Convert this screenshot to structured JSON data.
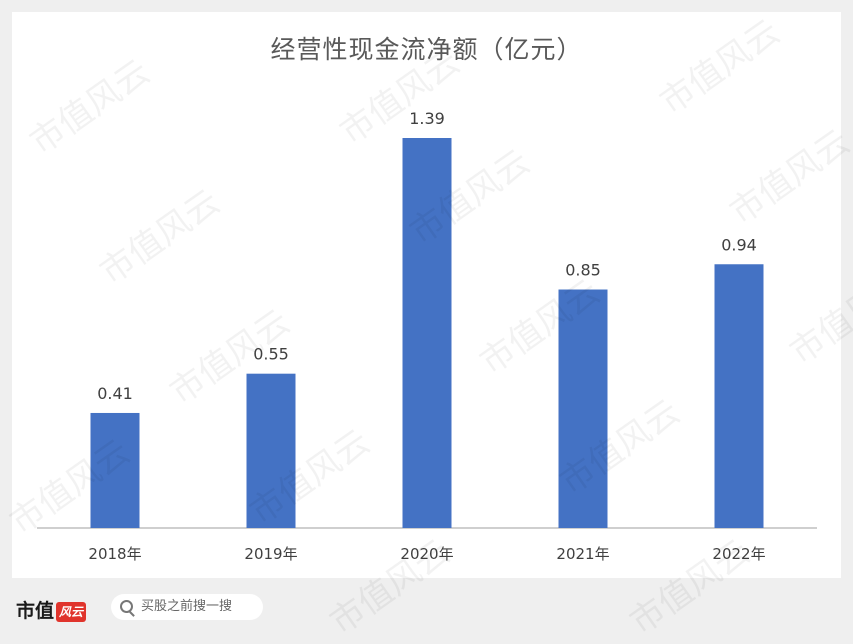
{
  "chart_data": {
    "type": "bar",
    "title": "经营性现金流净额（亿元）",
    "categories": [
      "2018年",
      "2019年",
      "2020年",
      "2021年",
      "2022年"
    ],
    "values": [
      0.41,
      0.55,
      1.39,
      0.85,
      0.94
    ],
    "data_labels": [
      "0.41",
      "0.55",
      "1.39",
      "0.85",
      "0.94"
    ],
    "bar_color": "#4472c4",
    "ylim": [
      0,
      1.5
    ],
    "grid": false,
    "legend": "none"
  },
  "watermark_text": "市值风云",
  "footer": {
    "brand_name": "市值",
    "brand_badge": "风云",
    "search_placeholder": "买股之前搜一搜"
  }
}
